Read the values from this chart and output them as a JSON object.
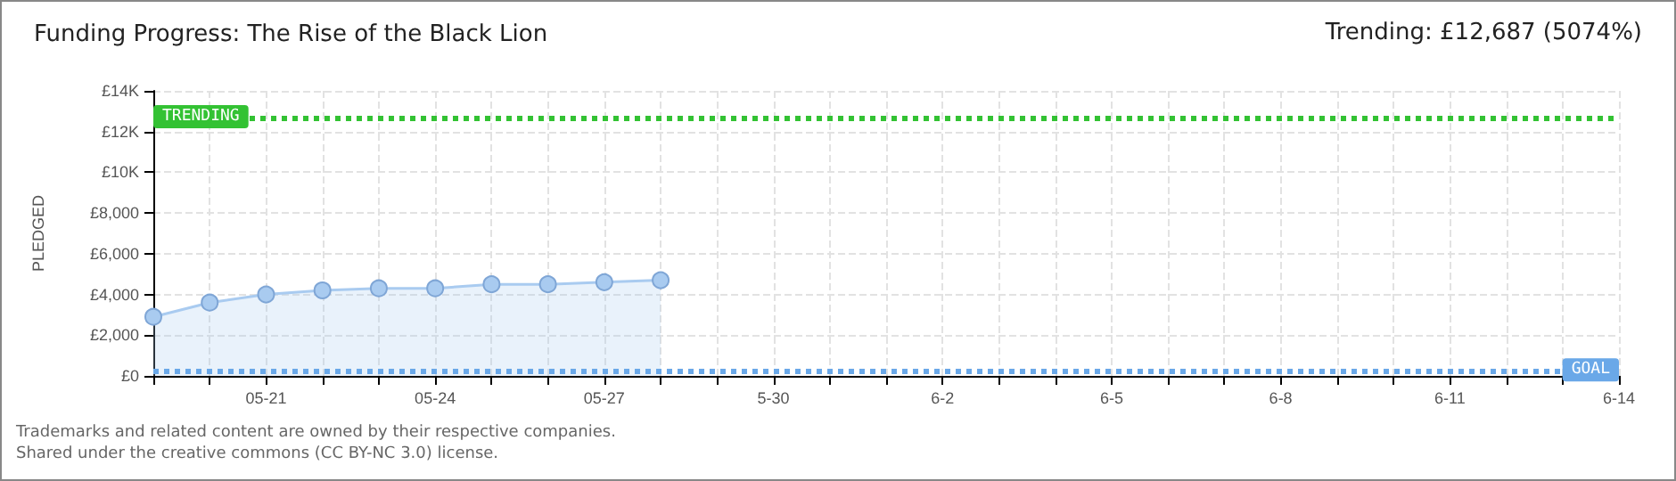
{
  "chart_data": {
    "type": "area",
    "title": "Funding Progress: The Rise of the Black Lion",
    "subtitle": "Trending:  £12,687 (5074%)",
    "ylabel": "PLEDGED",
    "categories": [
      null,
      null,
      "05-21",
      null,
      null,
      "05-24",
      null,
      null,
      "05-27",
      null,
      null,
      "5-30",
      null,
      null,
      "6-2",
      null,
      null,
      "6-5",
      null,
      null,
      "6-8",
      null,
      null,
      "6-11",
      null,
      null,
      "6-14"
    ],
    "series": [
      {
        "color": "#a9cbf0",
        "values": [
          2900,
          3600,
          4000,
          4200,
          4300,
          4300,
          4500,
          4500,
          4600,
          4700,
          null,
          null,
          null,
          null,
          null,
          null,
          null,
          null,
          null,
          null,
          null,
          null,
          null,
          null,
          null,
          null,
          null
        ]
      }
    ],
    "ylim": [
      0,
      14000
    ],
    "yticks": [
      {
        "value": 0,
        "label": "£0"
      },
      {
        "value": 2000,
        "label": "£2,000"
      },
      {
        "value": 4000,
        "label": "£4,000"
      },
      {
        "value": 6000,
        "label": "£6,000"
      },
      {
        "value": 8000,
        "label": "£8,000"
      },
      {
        "value": 10000,
        "label": "£10K"
      },
      {
        "value": 12000,
        "label": "£12K"
      },
      {
        "value": 14000,
        "label": "£14K"
      }
    ],
    "ref_lines": [
      {
        "axis": "y",
        "value": 12687,
        "label": "TRENDING",
        "color": "#33c233",
        "line_style": "dotted"
      },
      {
        "axis": "y",
        "value": 250,
        "label": "GOAL",
        "color": "#6aa8e8",
        "line_style": "dotted"
      }
    ],
    "annotations": [
      "Trademarks and related content are owned by their respective companies.",
      "Shared under the creative commons (CC BY-NC 3.0) license."
    ],
    "grid": true,
    "marker": "circle"
  }
}
